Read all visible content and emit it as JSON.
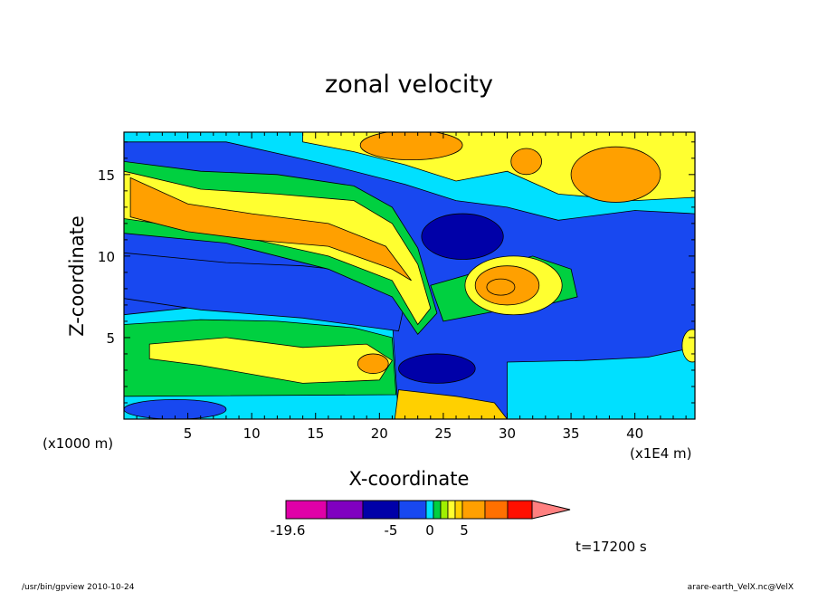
{
  "chart_data": {
    "type": "heatmap",
    "title": "zonal velocity",
    "xlabel": "X-coordinate",
    "ylabel": "Z-coordinate",
    "x_unit": "(x1000 m)",
    "x_unit_right": "(x1E4 m)",
    "x_ticks": [
      5,
      10,
      15,
      20,
      25,
      30,
      35,
      40
    ],
    "y_ticks": [
      5,
      10,
      15
    ],
    "xlim": [
      0,
      44.7
    ],
    "ylim": [
      0,
      17.6
    ],
    "time_label": "t=17200 s",
    "colorbar": {
      "labels": [
        "-19.6",
        "-5",
        "0",
        "5"
      ],
      "label_values": [
        -19.6,
        -5,
        0,
        5
      ],
      "colors": [
        "#e000a8",
        "#8000c0",
        "#0000a8",
        "#1848f0",
        "#00e0ff",
        "#00d040",
        "#a0f000",
        "#ffff30",
        "#ffd000",
        "#ffa000",
        "#ff7000",
        "#ff1000",
        "#ff8080"
      ]
    },
    "series": [
      {
        "label": "orange jet (upper-left)",
        "level": 4,
        "shape": "band",
        "x_range": [
          0.5,
          21
        ],
        "y": [
          13.2,
          12.4,
          11.6,
          10.8,
          9.8,
          8.5
        ],
        "x_end": 22.5
      },
      {
        "label": "blue core (lower-left)",
        "level": -5,
        "shape": "band",
        "x_range": [
          0,
          21
        ],
        "y": [
          8.8,
          8.4,
          7.8,
          7.2
        ],
        "x_end": 21.5
      },
      {
        "label": "orange core (right)",
        "level": 5,
        "shape": "blob",
        "center": [
          30,
          8.2
        ],
        "extent": [
          3.5,
          1.8
        ]
      },
      {
        "label": "dark blue core (upper-middle)",
        "level": -8,
        "shape": "blob",
        "center": [
          26.5,
          11.2
        ],
        "extent": [
          3.2,
          1.4
        ]
      },
      {
        "label": "dark blue core (lower-middle)",
        "level": -8,
        "shape": "blob",
        "center": [
          24.5,
          3.2
        ],
        "extent": [
          3,
          0.9
        ]
      },
      {
        "label": "orange core (upper-right)",
        "level": 4,
        "shape": "blob",
        "center": [
          38.5,
          15
        ],
        "extent": [
          3.5,
          1.8
        ]
      }
    ]
  },
  "footer": {
    "left": "/usr/bin/gpview   2010-10-24",
    "right": "arare-earth_VelX.nc@VelX"
  }
}
